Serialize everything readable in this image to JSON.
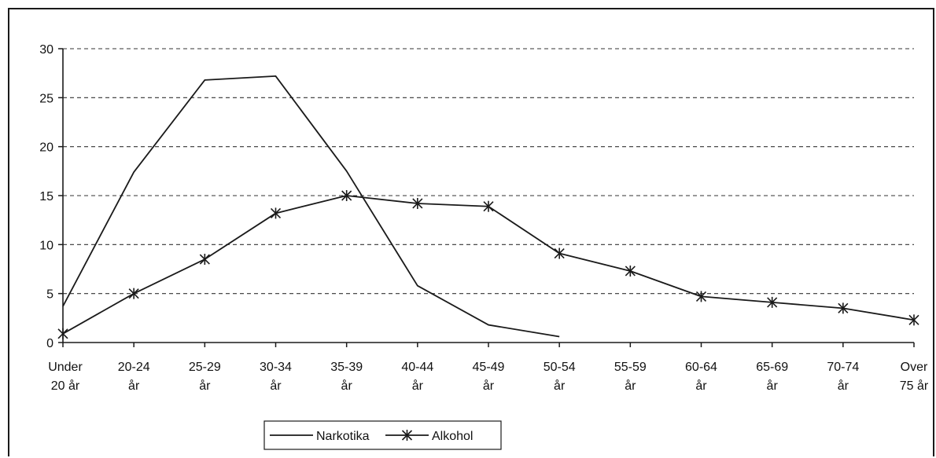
{
  "chart_data": {
    "type": "line",
    "categories": [
      [
        "Under",
        "20 år"
      ],
      [
        "20-24",
        "år"
      ],
      [
        "25-29",
        "år"
      ],
      [
        "30-34",
        "år"
      ],
      [
        "35-39",
        "år"
      ],
      [
        "40-44",
        "år"
      ],
      [
        "45-49",
        "år"
      ],
      [
        "50-54",
        "år"
      ],
      [
        "55-59",
        "år"
      ],
      [
        "60-64",
        "år"
      ],
      [
        "65-69",
        "år"
      ],
      [
        "70-74",
        "år"
      ],
      [
        "Over",
        "75 år"
      ]
    ],
    "series": [
      {
        "name": "Narkotika",
        "marker": "none",
        "values": [
          3.7,
          17.4,
          26.8,
          27.2,
          17.5,
          5.8,
          1.8,
          0.6,
          null,
          null,
          null,
          null,
          null
        ]
      },
      {
        "name": "Alkohol",
        "marker": "asterisk",
        "values": [
          0.9,
          5.0,
          8.5,
          13.2,
          15.0,
          14.2,
          13.9,
          9.1,
          7.3,
          4.7,
          4.1,
          3.5,
          2.3
        ]
      }
    ],
    "ylim": [
      0,
      30
    ],
    "yticks": [
      "0",
      "5",
      "10",
      "15",
      "20",
      "25",
      "30"
    ],
    "grid": "dashed-horizontal",
    "legend_position": "bottom-left",
    "colors": {
      "line": "#1a1a1a",
      "grid": "#333333"
    }
  }
}
